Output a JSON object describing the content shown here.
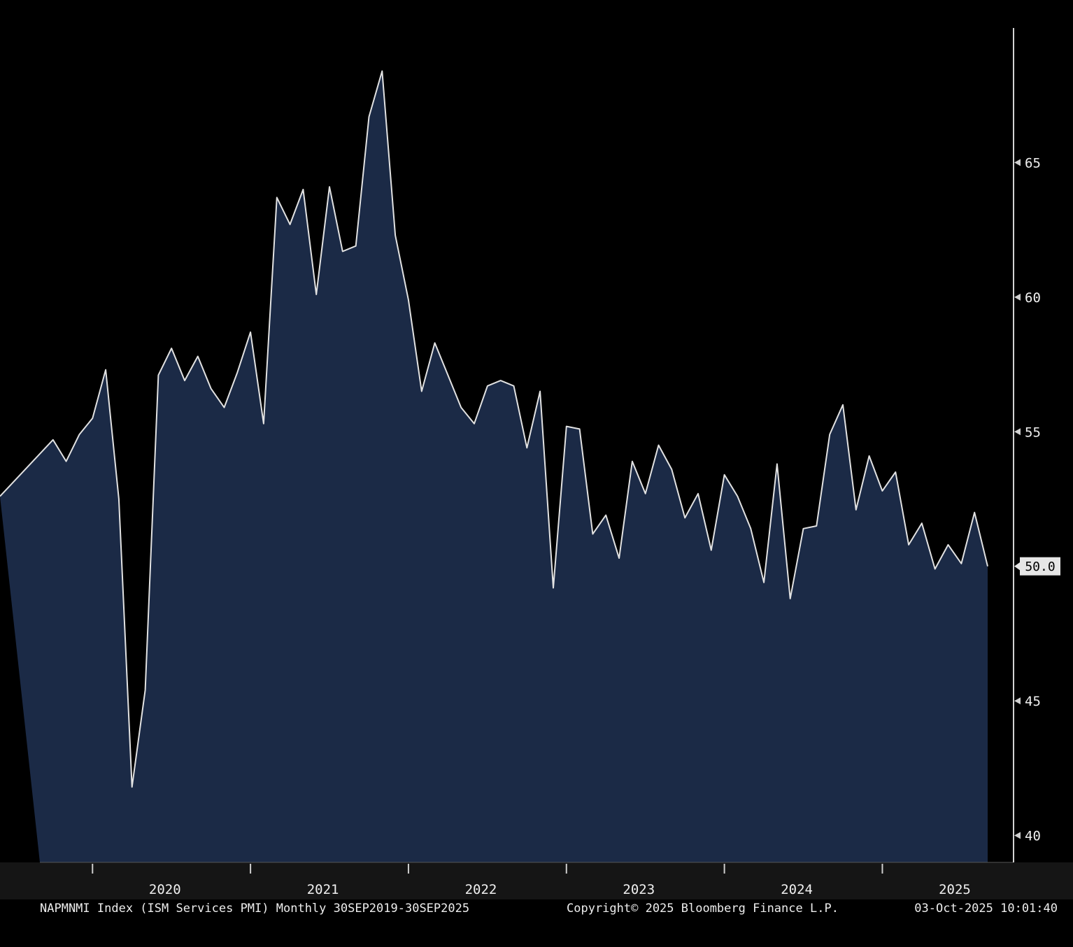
{
  "chart_data": {
    "type": "area",
    "title": "",
    "xlabel": "",
    "ylabel": "",
    "series_name": "NAPMNMI Index (ISM Services PMI)",
    "frequency": "Monthly",
    "period": "30SEP2019-30SEP2025",
    "months": [
      "2019-09",
      "2019-10",
      "2019-11",
      "2019-12",
      "2020-01",
      "2020-02",
      "2020-03",
      "2020-04",
      "2020-05",
      "2020-06",
      "2020-07",
      "2020-08",
      "2020-09",
      "2020-10",
      "2020-11",
      "2020-12",
      "2021-01",
      "2021-02",
      "2021-03",
      "2021-04",
      "2021-05",
      "2021-06",
      "2021-07",
      "2021-08",
      "2021-09",
      "2021-10",
      "2021-11",
      "2021-12",
      "2022-01",
      "2022-02",
      "2022-03",
      "2022-04",
      "2022-05",
      "2022-06",
      "2022-07",
      "2022-08",
      "2022-09",
      "2022-10",
      "2022-11",
      "2022-12",
      "2023-01",
      "2023-02",
      "2023-03",
      "2023-04",
      "2023-05",
      "2023-06",
      "2023-07",
      "2023-08",
      "2023-09",
      "2023-10",
      "2023-11",
      "2023-12",
      "2024-01",
      "2024-02",
      "2024-03",
      "2024-04",
      "2024-05",
      "2024-06",
      "2024-07",
      "2024-08",
      "2024-09",
      "2024-10",
      "2024-11",
      "2024-12",
      "2025-01",
      "2025-02",
      "2025-03",
      "2025-04",
      "2025-05",
      "2025-06",
      "2025-07",
      "2025-08",
      "2025-09"
    ],
    "values": [
      52.6,
      54.7,
      53.9,
      54.9,
      55.5,
      57.3,
      52.5,
      41.8,
      45.4,
      57.1,
      58.1,
      56.9,
      57.8,
      56.6,
      55.9,
      57.2,
      58.7,
      55.3,
      63.7,
      62.7,
      64.0,
      60.1,
      64.1,
      61.7,
      61.9,
      66.7,
      68.4,
      62.3,
      59.9,
      56.5,
      58.3,
      57.1,
      55.9,
      55.3,
      56.7,
      56.9,
      56.7,
      54.4,
      56.5,
      49.2,
      55.2,
      55.1,
      51.2,
      51.9,
      50.3,
      53.9,
      52.7,
      54.5,
      53.6,
      51.8,
      52.7,
      50.6,
      53.4,
      52.6,
      51.4,
      49.4,
      53.8,
      48.8,
      51.4,
      51.5,
      54.9,
      56.0,
      52.1,
      54.1,
      52.8,
      53.5,
      50.8,
      51.6,
      49.9,
      50.8,
      50.1,
      52.0,
      50.0
    ],
    "ylim": [
      39,
      70
    ],
    "yticks": [
      40,
      45,
      55,
      60,
      65
    ],
    "last_value": 50.0,
    "last_value_label": "50.0",
    "xtick_years": [
      "2020",
      "2021",
      "2022",
      "2023",
      "2024",
      "2025"
    ],
    "grid": "off",
    "legend": "none",
    "colors": {
      "background": "#000000",
      "area_fill": "#1b2a46",
      "line": "#e2e2e2",
      "axis_line": "#d4d4d4",
      "tick": "#cfcfcf",
      "tick_label": "#f0f0f0",
      "axis_band": "#151515",
      "badge_bg": "#e6e6e6",
      "badge_text": "#000000"
    }
  },
  "footer": {
    "left": "NAPMNMI Index (ISM Services PMI) Monthly 30SEP2019-30SEP2025",
    "center": "Copyright© 2025 Bloomberg Finance L.P.",
    "right": "03-Oct-2025 10:01:40"
  }
}
